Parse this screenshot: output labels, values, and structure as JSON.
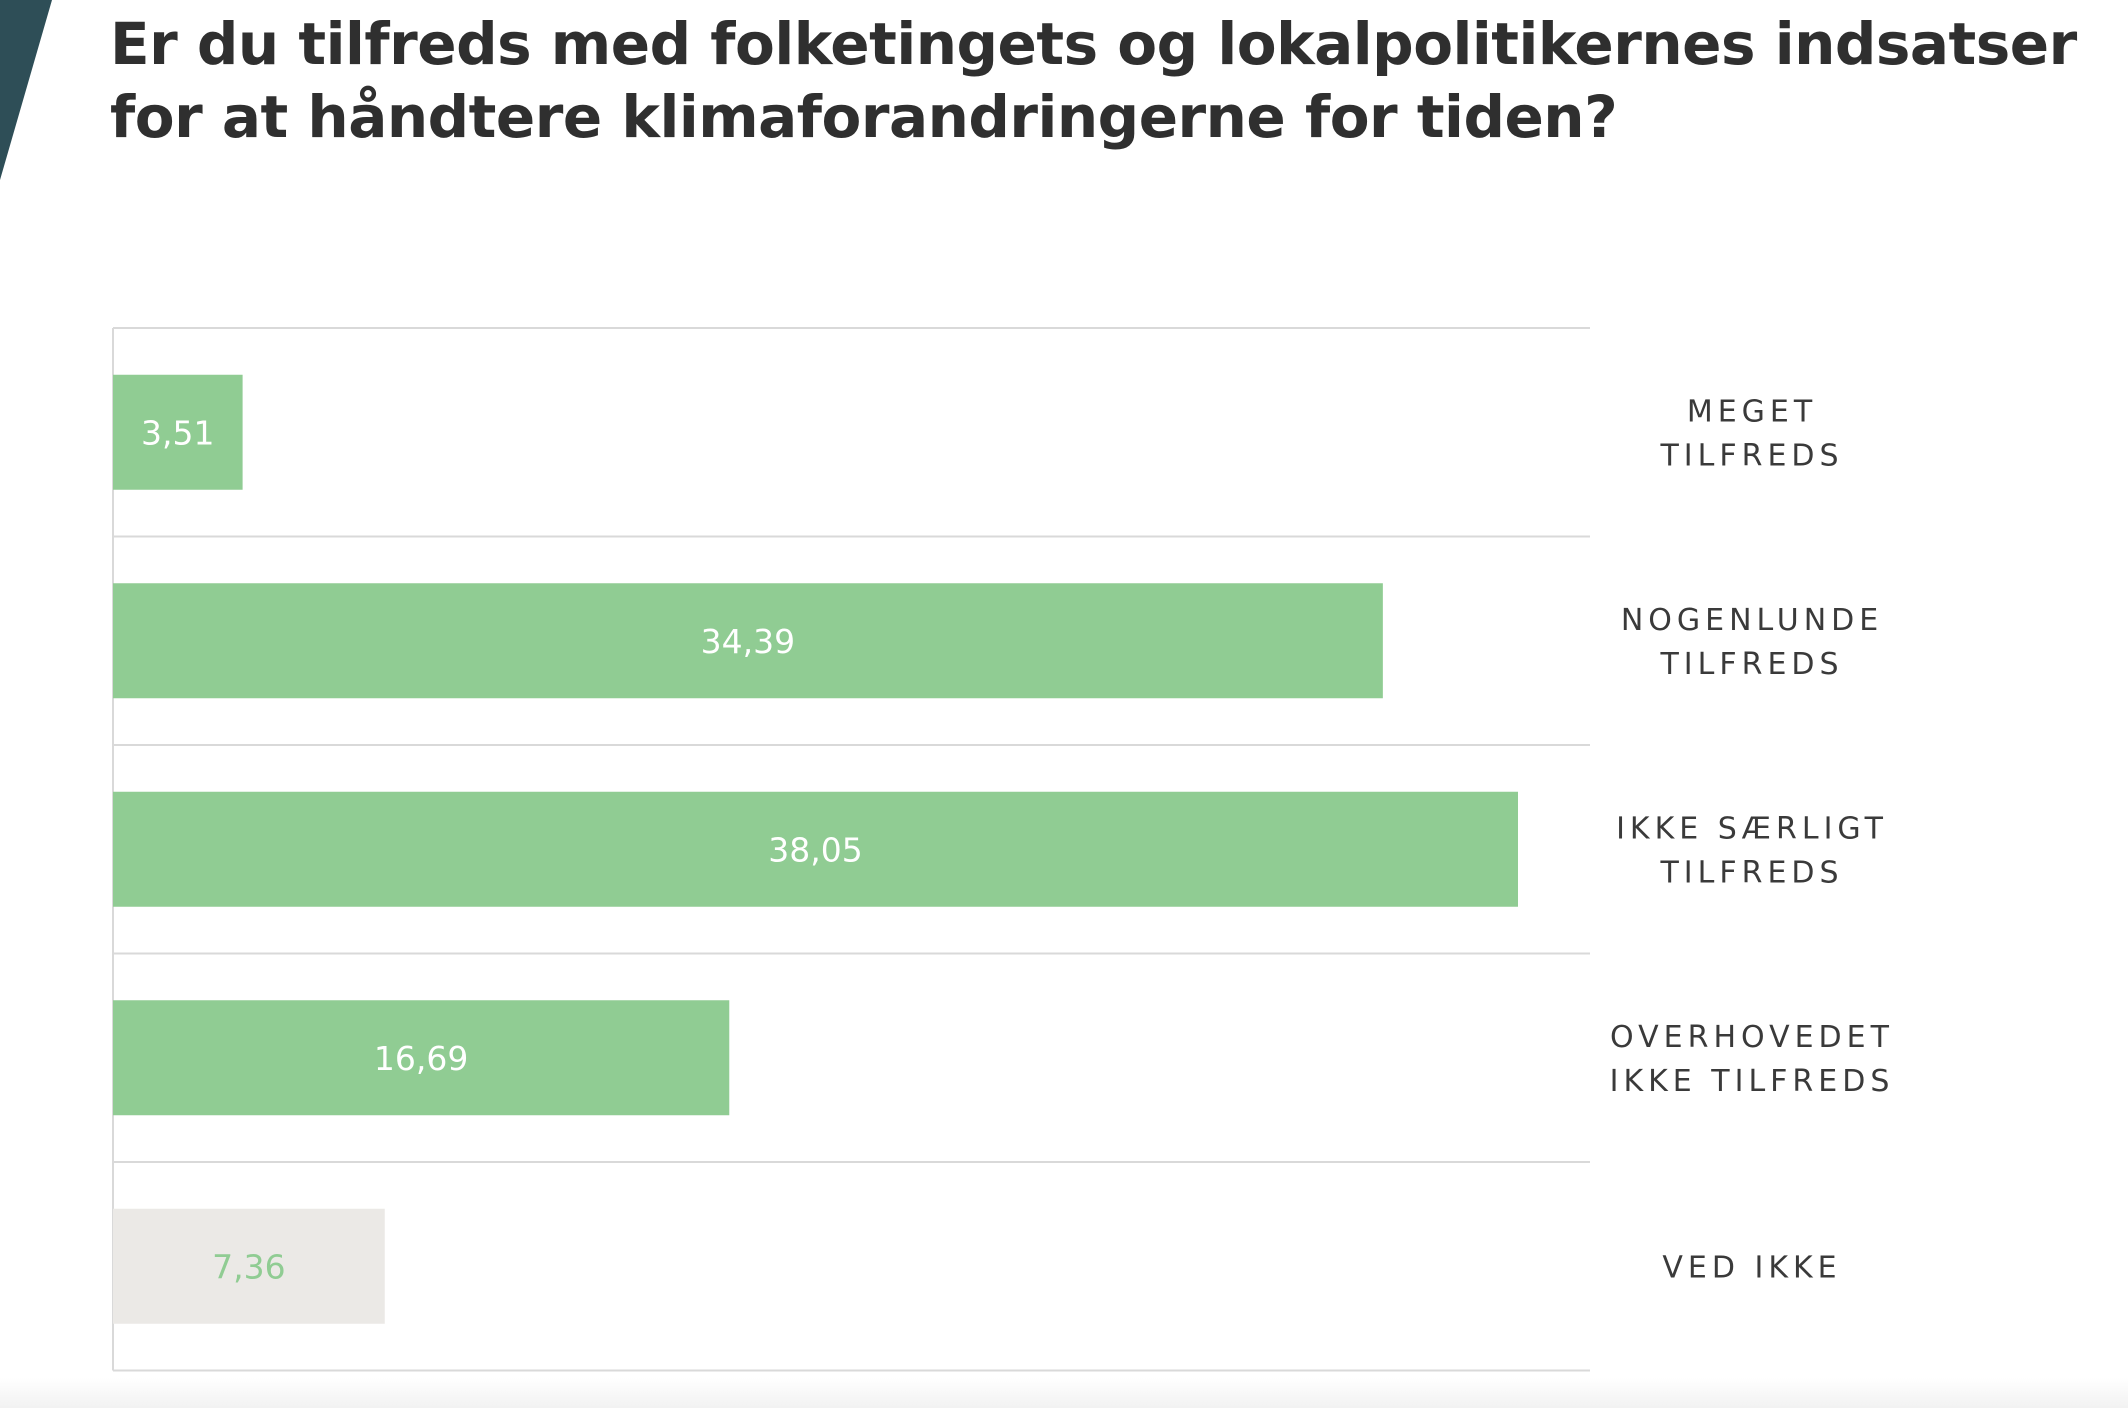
{
  "title": "Er du tilfreds med folketingets og lokalpolitikernes indsatser for at håndtere klimaforandringerne for tiden?",
  "colors": {
    "bar": "#90cc93",
    "bar_unknown": "#ebe9e6",
    "label_on_bar": "#ffffff",
    "label_on_unknown": "#90cc93",
    "corner": "#2e4e57"
  },
  "chart_data": {
    "type": "bar",
    "orientation": "horizontal",
    "title": "Er du tilfreds med folketingets og lokalpolitikernes indsatser for at håndtere klimaforandringerne for tiden?",
    "categories": [
      [
        "MEGET",
        "TILFREDS"
      ],
      [
        "NOGENLUNDE",
        "TILFREDS"
      ],
      [
        "IKKE SÆRLIGT",
        "TILFREDS"
      ],
      [
        "OVERHOVEDET",
        "IKKE TILFREDS"
      ],
      [
        "VED IKKE"
      ]
    ],
    "values": [
      3.51,
      34.39,
      38.05,
      16.69,
      7.36
    ],
    "value_labels": [
      "3,51",
      "34,39",
      "38,05",
      "16,69",
      "7,36"
    ],
    "xlim": [
      0,
      40
    ],
    "legend": "none",
    "grid": "horizontal row separators"
  }
}
